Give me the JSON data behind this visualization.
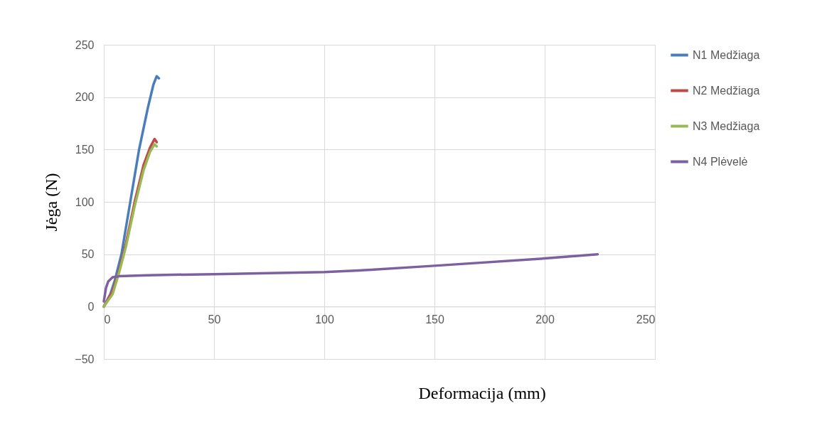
{
  "chart_data": {
    "type": "line",
    "xlabel": "Deformacija (mm)",
    "ylabel": "Jėga (N)",
    "xlim": [
      0,
      250
    ],
    "xticks": [
      0,
      50,
      100,
      150,
      200,
      250
    ],
    "ylim": [
      -50,
      250
    ],
    "yticks": [
      -50,
      0,
      50,
      100,
      150,
      200,
      250
    ],
    "grid": true,
    "legend": "right",
    "marker": "none",
    "line_style": "solid",
    "series": [
      {
        "name": "N1 Medžiaga",
        "color": "#4a7ebb",
        "x": [
          0,
          3,
          5,
          8,
          12,
          16,
          20,
          22.5,
          24,
          25
        ],
        "values": [
          0,
          12,
          25,
          50,
          100,
          150,
          190,
          212,
          220,
          218
        ]
      },
      {
        "name": "N2 Medžiaga",
        "color": "#be4b48",
        "x": [
          0,
          4,
          7,
          10,
          14,
          18,
          21,
          23,
          24
        ],
        "values": [
          0,
          15,
          35,
          60,
          100,
          135,
          152,
          160,
          157
        ]
      },
      {
        "name": "N3 Medžiaga",
        "color": "#98b954",
        "x": [
          0,
          4,
          7,
          10,
          14,
          18,
          21,
          23,
          24
        ],
        "values": [
          0,
          12,
          33,
          57,
          96,
          130,
          148,
          155,
          153
        ]
      },
      {
        "name": "N4 Plėvelė",
        "color": "#7d60a0",
        "x": [
          0,
          1,
          2,
          4,
          7,
          20,
          50,
          100,
          120,
          150,
          200,
          224
        ],
        "values": [
          5,
          18,
          24,
          28,
          29,
          30,
          31,
          33,
          35,
          39,
          46,
          50
        ]
      }
    ]
  }
}
